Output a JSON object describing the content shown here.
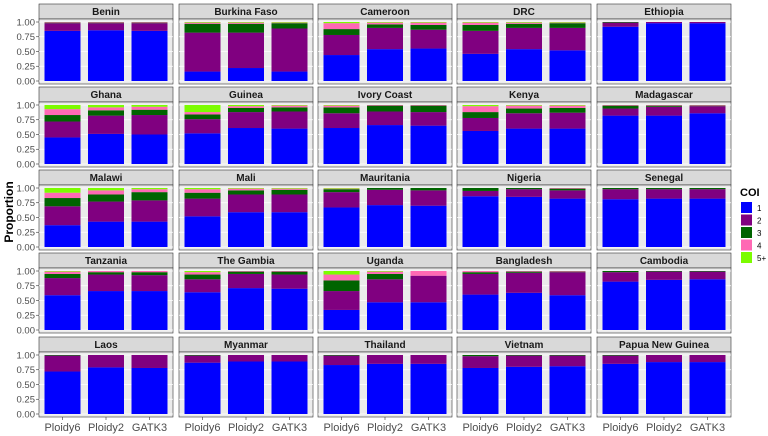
{
  "chart_data": {
    "type": "bar",
    "stacked": true,
    "xlabel": "",
    "ylabel": "Proportion",
    "ylim": [
      0,
      1
    ],
    "yticks": [
      "0.00",
      "0.25",
      "0.50",
      "0.75",
      "1.00"
    ],
    "categories": [
      "Ploidy6",
      "Ploidy2",
      "GATK3"
    ],
    "legend": {
      "title": "COI",
      "position": "right",
      "entries": [
        {
          "label": "1",
          "color": "#0000ff"
        },
        {
          "label": "2",
          "color": "#800080"
        },
        {
          "label": "3",
          "color": "#006400"
        },
        {
          "label": "4",
          "color": "#ff69b4"
        },
        {
          "label": "5+",
          "color": "#7cfc00"
        }
      ]
    },
    "panel_background": "#ebebeb",
    "strip_background": "#d9d9d9",
    "grid": true,
    "panels": [
      {
        "country": "Benin",
        "bars": [
          [
            0.85,
            0.13,
            0.01,
            0.01,
            0
          ],
          [
            0.86,
            0.12,
            0.01,
            0.01,
            0
          ],
          [
            0.85,
            0.13,
            0.01,
            0.01,
            0
          ]
        ]
      },
      {
        "country": "Burkina Faso",
        "bars": [
          [
            0.16,
            0.66,
            0.15,
            0.02,
            0.01
          ],
          [
            0.22,
            0.6,
            0.15,
            0.02,
            0.01
          ],
          [
            0.16,
            0.73,
            0.09,
            0.01,
            0.01
          ]
        ]
      },
      {
        "country": "Cameroon",
        "bars": [
          [
            0.44,
            0.34,
            0.1,
            0.1,
            0.02
          ],
          [
            0.54,
            0.36,
            0.06,
            0.03,
            0.01
          ],
          [
            0.55,
            0.32,
            0.08,
            0.04,
            0.01
          ]
        ]
      },
      {
        "country": "DRC",
        "bars": [
          [
            0.46,
            0.39,
            0.1,
            0.04,
            0.01
          ],
          [
            0.54,
            0.36,
            0.07,
            0.02,
            0.01
          ],
          [
            0.52,
            0.38,
            0.08,
            0.01,
            0.01
          ]
        ]
      },
      {
        "country": "Ethiopia",
        "bars": [
          [
            0.92,
            0.07,
            0.01,
            0,
            0
          ],
          [
            0.98,
            0.02,
            0,
            0,
            0
          ],
          [
            0.98,
            0.02,
            0,
            0,
            0
          ]
        ]
      },
      {
        "country": "Ghana",
        "bars": [
          [
            0.45,
            0.27,
            0.11,
            0.1,
            0.07
          ],
          [
            0.51,
            0.31,
            0.09,
            0.05,
            0.04
          ],
          [
            0.5,
            0.33,
            0.09,
            0.05,
            0.03
          ]
        ]
      },
      {
        "country": "Guinea",
        "bars": [
          [
            0.52,
            0.24,
            0.08,
            0.04,
            0.12
          ],
          [
            0.61,
            0.27,
            0.07,
            0.03,
            0.02
          ],
          [
            0.6,
            0.29,
            0.07,
            0.03,
            0.01
          ]
        ]
      },
      {
        "country": "Ivory Coast",
        "bars": [
          [
            0.61,
            0.25,
            0.1,
            0.03,
            0.01
          ],
          [
            0.66,
            0.23,
            0.1,
            0.01,
            0
          ],
          [
            0.65,
            0.23,
            0.11,
            0.01,
            0
          ]
        ]
      },
      {
        "country": "Kenya",
        "bars": [
          [
            0.56,
            0.22,
            0.1,
            0.1,
            0.02
          ],
          [
            0.6,
            0.26,
            0.08,
            0.05,
            0.01
          ],
          [
            0.6,
            0.27,
            0.08,
            0.04,
            0.01
          ]
        ]
      },
      {
        "country": "Madagascar",
        "bars": [
          [
            0.82,
            0.12,
            0.05,
            0.01,
            0
          ],
          [
            0.82,
            0.15,
            0.02,
            0.01,
            0
          ],
          [
            0.86,
            0.12,
            0.01,
            0.01,
            0
          ]
        ]
      },
      {
        "country": "Malawi",
        "bars": [
          [
            0.37,
            0.32,
            0.14,
            0.09,
            0.08
          ],
          [
            0.43,
            0.34,
            0.12,
            0.07,
            0.04
          ],
          [
            0.43,
            0.36,
            0.14,
            0.05,
            0.02
          ]
        ]
      },
      {
        "country": "Mali",
        "bars": [
          [
            0.52,
            0.3,
            0.1,
            0.06,
            0.02
          ],
          [
            0.59,
            0.3,
            0.07,
            0.03,
            0.01
          ],
          [
            0.59,
            0.3,
            0.08,
            0.02,
            0.01
          ]
        ]
      },
      {
        "country": "Mauritania",
        "bars": [
          [
            0.67,
            0.26,
            0.05,
            0.01,
            0.01
          ],
          [
            0.71,
            0.26,
            0.03,
            0,
            0
          ],
          [
            0.7,
            0.26,
            0.04,
            0,
            0
          ]
        ]
      },
      {
        "country": "Nigeria",
        "bars": [
          [
            0.86,
            0.09,
            0.05,
            0,
            0
          ],
          [
            0.85,
            0.13,
            0.02,
            0,
            0
          ],
          [
            0.82,
            0.14,
            0.03,
            0.01,
            0
          ]
        ]
      },
      {
        "country": "Senegal",
        "bars": [
          [
            0.81,
            0.17,
            0.02,
            0,
            0
          ],
          [
            0.82,
            0.16,
            0.02,
            0,
            0
          ],
          [
            0.82,
            0.16,
            0.02,
            0,
            0
          ]
        ]
      },
      {
        "country": "Tanzania",
        "bars": [
          [
            0.59,
            0.29,
            0.07,
            0.04,
            0.01
          ],
          [
            0.66,
            0.28,
            0.04,
            0.02,
            0
          ],
          [
            0.66,
            0.27,
            0.05,
            0.02,
            0
          ]
        ]
      },
      {
        "country": "The Gambia",
        "bars": [
          [
            0.64,
            0.22,
            0.08,
            0.04,
            0.02
          ],
          [
            0.71,
            0.24,
            0.04,
            0.01,
            0
          ],
          [
            0.7,
            0.24,
            0.05,
            0.01,
            0
          ]
        ]
      },
      {
        "country": "Uganda",
        "bars": [
          [
            0.34,
            0.32,
            0.18,
            0.1,
            0.06
          ],
          [
            0.47,
            0.39,
            0.09,
            0.04,
            0.01
          ],
          [
            0.47,
            0.45,
            0,
            0.08,
            0
          ]
        ]
      },
      {
        "country": "Bangladesh",
        "bars": [
          [
            0.6,
            0.35,
            0.03,
            0.02,
            0
          ],
          [
            0.63,
            0.34,
            0.02,
            0.01,
            0
          ],
          [
            0.59,
            0.39,
            0.01,
            0.01,
            0
          ]
        ]
      },
      {
        "country": "Cambodia",
        "bars": [
          [
            0.82,
            0.16,
            0.02,
            0,
            0
          ],
          [
            0.85,
            0.14,
            0.01,
            0,
            0
          ],
          [
            0.86,
            0.13,
            0.01,
            0,
            0
          ]
        ]
      },
      {
        "country": "Laos",
        "bars": [
          [
            0.72,
            0.27,
            0.01,
            0,
            0
          ],
          [
            0.79,
            0.21,
            0,
            0,
            0
          ],
          [
            0.78,
            0.22,
            0,
            0,
            0
          ]
        ]
      },
      {
        "country": "Myanmar",
        "bars": [
          [
            0.87,
            0.12,
            0.01,
            0,
            0
          ],
          [
            0.89,
            0.11,
            0,
            0,
            0
          ],
          [
            0.89,
            0.11,
            0,
            0,
            0
          ]
        ]
      },
      {
        "country": "Thailand",
        "bars": [
          [
            0.83,
            0.16,
            0.01,
            0,
            0
          ],
          [
            0.85,
            0.15,
            0,
            0,
            0
          ],
          [
            0.85,
            0.15,
            0,
            0,
            0
          ]
        ]
      },
      {
        "country": "Vietnam",
        "bars": [
          [
            0.78,
            0.2,
            0.02,
            0,
            0
          ],
          [
            0.8,
            0.19,
            0.01,
            0,
            0
          ],
          [
            0.81,
            0.18,
            0.01,
            0,
            0
          ]
        ]
      },
      {
        "country": "Papua New Guinea",
        "bars": [
          [
            0.85,
            0.14,
            0.01,
            0,
            0
          ],
          [
            0.88,
            0.12,
            0,
            0,
            0
          ],
          [
            0.88,
            0.12,
            0,
            0,
            0
          ]
        ]
      }
    ]
  }
}
